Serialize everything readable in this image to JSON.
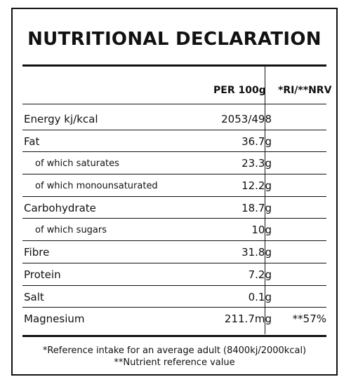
{
  "title": "NUTRITIONAL DECLARATION",
  "columns": {
    "per": "PER 100g",
    "ri": "*RI/**NRV"
  },
  "rows": [
    {
      "label": "Energy kj/kcal",
      "value": "2053/498",
      "ri": "",
      "sub": false
    },
    {
      "label": "Fat",
      "value": "36.7g",
      "ri": "",
      "sub": false
    },
    {
      "label": "of which saturates",
      "value": "23.3g",
      "ri": "",
      "sub": true
    },
    {
      "label": "of which monounsaturated",
      "value": "12.2g",
      "ri": "",
      "sub": true
    },
    {
      "label": "Carbohydrate",
      "value": "18.7g",
      "ri": "",
      "sub": false
    },
    {
      "label": "of which sugars",
      "value": "10g",
      "ri": "",
      "sub": true
    },
    {
      "label": "Fibre",
      "value": "31.8g",
      "ri": "",
      "sub": false
    },
    {
      "label": "Protein",
      "value": "7.2g",
      "ri": "",
      "sub": false
    },
    {
      "label": "Salt",
      "value": "0.1g",
      "ri": "",
      "sub": false
    },
    {
      "label": "Magnesium",
      "value": "211.7mg",
      "ri": "**57%",
      "sub": false
    }
  ],
  "footnotes": [
    "*Reference intake for an average adult (8400kj/2000kcal)",
    "**Nutrient reference value"
  ]
}
